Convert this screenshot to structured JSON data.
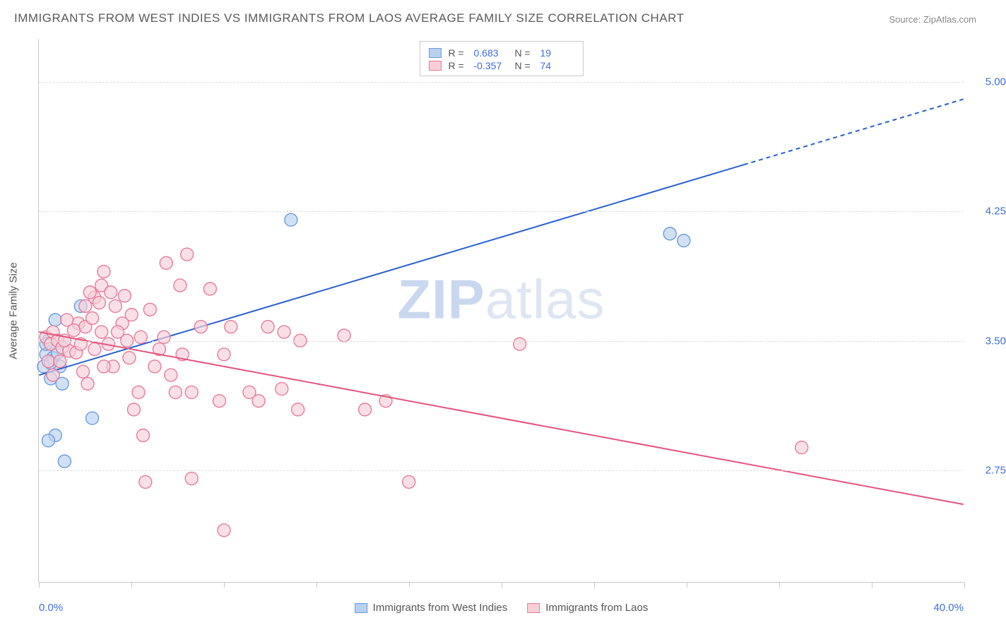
{
  "title": "IMMIGRANTS FROM WEST INDIES VS IMMIGRANTS FROM LAOS AVERAGE FAMILY SIZE CORRELATION CHART",
  "source": "Source: ZipAtlas.com",
  "watermark": "ZIPatlas",
  "yaxis_title": "Average Family Size",
  "xaxis_min_label": "0.0%",
  "xaxis_max_label": "40.0%",
  "chart": {
    "type": "scatter",
    "xlim": [
      0,
      40
    ],
    "ylim": [
      2.1,
      5.25
    ],
    "ygrid": [
      2.75,
      3.5,
      4.25,
      5.0
    ],
    "ytick_labels": [
      "2.75",
      "3.50",
      "4.25",
      "5.00"
    ],
    "xticks": [
      0,
      4,
      8,
      12,
      16,
      20,
      24,
      28,
      32,
      36,
      40
    ],
    "background": "#ffffff",
    "grid_color": "#dcdcdc",
    "axis_color": "#c8c8c8",
    "series": [
      {
        "name": "Immigrants from West Indies",
        "fill": "#b9d1f0",
        "stroke": "#6a9be0",
        "line_color": "#2a5fd0",
        "R": "0.683",
        "N": "19",
        "points": [
          [
            0.2,
            3.35
          ],
          [
            0.3,
            3.42
          ],
          [
            0.4,
            3.5
          ],
          [
            0.7,
            3.62
          ],
          [
            0.6,
            3.4
          ],
          [
            0.5,
            3.28
          ],
          [
            1.0,
            3.25
          ],
          [
            1.1,
            2.8
          ],
          [
            0.7,
            2.95
          ],
          [
            0.4,
            2.92
          ],
          [
            2.3,
            3.05
          ],
          [
            1.8,
            3.7
          ],
          [
            0.3,
            3.48
          ],
          [
            0.8,
            3.43
          ],
          [
            0.9,
            3.35
          ],
          [
            10.9,
            4.2
          ],
          [
            27.3,
            4.12
          ],
          [
            27.9,
            4.08
          ],
          [
            0.5,
            3.37
          ]
        ],
        "trend": {
          "x1": 0,
          "y1": 3.3,
          "x2": 40,
          "y2": 4.9,
          "dash_from_x": 30.5
        }
      },
      {
        "name": "Immigrants from Laos",
        "fill": "#f8cfd9",
        "stroke": "#e77a9a",
        "line_color": "#e5537d",
        "R": "-0.357",
        "N": "74",
        "points": [
          [
            0.3,
            3.52
          ],
          [
            0.5,
            3.48
          ],
          [
            0.6,
            3.55
          ],
          [
            0.8,
            3.5
          ],
          [
            1.0,
            3.46
          ],
          [
            1.3,
            3.44
          ],
          [
            1.6,
            3.43
          ],
          [
            1.7,
            3.6
          ],
          [
            2.0,
            3.58
          ],
          [
            2.3,
            3.63
          ],
          [
            2.4,
            3.75
          ],
          [
            2.6,
            3.72
          ],
          [
            2.7,
            3.82
          ],
          [
            2.8,
            3.9
          ],
          [
            3.1,
            3.78
          ],
          [
            3.3,
            3.7
          ],
          [
            3.6,
            3.6
          ],
          [
            3.8,
            3.5
          ],
          [
            3.9,
            3.4
          ],
          [
            4.1,
            3.1
          ],
          [
            4.3,
            3.2
          ],
          [
            4.5,
            2.95
          ],
          [
            4.6,
            2.68
          ],
          [
            5.0,
            3.35
          ],
          [
            5.2,
            3.45
          ],
          [
            5.5,
            3.95
          ],
          [
            5.7,
            3.3
          ],
          [
            5.9,
            3.2
          ],
          [
            6.1,
            3.82
          ],
          [
            6.2,
            3.42
          ],
          [
            6.4,
            4.0
          ],
          [
            6.6,
            3.2
          ],
          [
            7.0,
            3.58
          ],
          [
            6.6,
            2.7
          ],
          [
            7.4,
            3.8
          ],
          [
            7.8,
            3.15
          ],
          [
            8.0,
            2.4
          ],
          [
            8.3,
            3.58
          ],
          [
            8.0,
            3.42
          ],
          [
            9.1,
            3.2
          ],
          [
            9.5,
            3.15
          ],
          [
            9.9,
            3.58
          ],
          [
            10.5,
            3.22
          ],
          [
            10.6,
            3.55
          ],
          [
            11.2,
            3.1
          ],
          [
            11.3,
            3.5
          ],
          [
            13.2,
            3.53
          ],
          [
            14.1,
            3.1
          ],
          [
            16.0,
            2.68
          ],
          [
            15.0,
            3.15
          ],
          [
            20.8,
            3.48
          ],
          [
            33.0,
            2.88
          ],
          [
            2.0,
            3.7
          ],
          [
            2.2,
            3.78
          ],
          [
            2.7,
            3.55
          ],
          [
            3.0,
            3.48
          ],
          [
            3.2,
            3.35
          ],
          [
            1.2,
            3.62
          ],
          [
            1.5,
            3.56
          ],
          [
            1.8,
            3.48
          ],
          [
            1.9,
            3.32
          ],
          [
            2.1,
            3.25
          ],
          [
            2.4,
            3.45
          ],
          [
            2.8,
            3.35
          ],
          [
            3.4,
            3.55
          ],
          [
            3.7,
            3.76
          ],
          [
            4.0,
            3.65
          ],
          [
            4.4,
            3.52
          ],
          [
            5.4,
            3.52
          ],
          [
            4.8,
            3.68
          ],
          [
            0.4,
            3.38
          ],
          [
            0.6,
            3.3
          ],
          [
            0.9,
            3.38
          ],
          [
            1.1,
            3.5
          ]
        ],
        "trend": {
          "x1": 0,
          "y1": 3.55,
          "x2": 40,
          "y2": 2.55,
          "dash_from_x": 40
        }
      }
    ]
  }
}
